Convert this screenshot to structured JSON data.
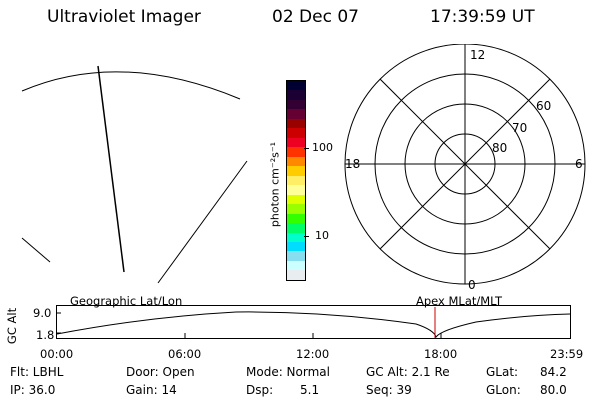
{
  "header": {
    "title": "Ultraviolet Imager",
    "date": "02 Dec 07",
    "time": "17:39:59 UT"
  },
  "colorbar": {
    "unit_label": "photon cm⁻²s⁻¹",
    "tick_100": "100",
    "tick_10": "10",
    "colors": [
      "#000033",
      "#1a0033",
      "#330033",
      "#660033",
      "#990000",
      "#cc0000",
      "#ee0022",
      "#ff3300",
      "#ff8800",
      "#ffcc00",
      "#ffee66",
      "#ffff99",
      "#ddff00",
      "#99ff00",
      "#33ff00",
      "#00ff66",
      "#00ffcc",
      "#00ddff",
      "#88ddee",
      "#ccffff",
      "#e8eef0"
    ]
  },
  "polar_plot": {
    "mlt_12": "12",
    "mlt_18": "18",
    "mlt_6": "6",
    "mlt_0": "0",
    "lat_60": "60",
    "lat_70": "70",
    "lat_80": "80"
  },
  "altitude_strip": {
    "axis_label": "GC Alt",
    "y_max": "9.0",
    "y_min": "1.8",
    "left_title": "Geographic Lat/Lon",
    "right_title": "Apex MLat/MLT",
    "time_ticks": [
      "00:00",
      "06:00",
      "12:00",
      "18:00",
      "23:59"
    ],
    "marker_color": "#cc0000"
  },
  "footer": {
    "filter": "Flt: LBHL",
    "ip": "IP: 36.0",
    "door": "Door: Open",
    "gain": "Gain: 14",
    "mode": "Mode: Normal",
    "dsp_label": "Dsp:",
    "dsp_value": "5.1",
    "gc_alt": "GC Alt: 2.1 Re",
    "seq": "Seq: 39",
    "glat_label": "GLat:",
    "glat_value": "84.2",
    "glon_label": "GLon:",
    "glon_value": "80.0"
  }
}
